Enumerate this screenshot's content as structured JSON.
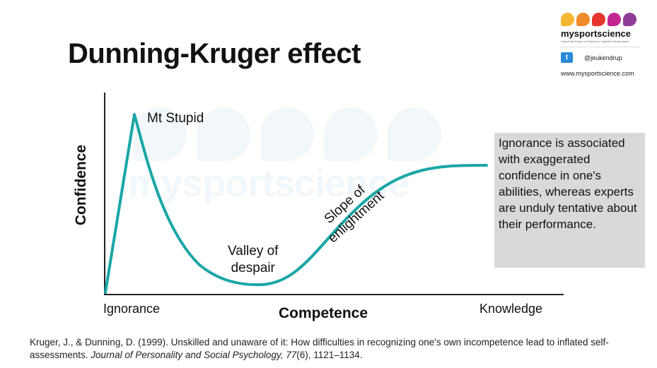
{
  "title": "Dunning-Kruger effect",
  "logo": {
    "name": "mysportscience",
    "tagline": "Unlock the Power of Science to Optimise Performance",
    "twitter_handle": "@jeukendrup",
    "url": "www.mysportscience.com",
    "dot_colors": [
      "#f5b731",
      "#f08a2b",
      "#e5352c",
      "#c2278f",
      "#8e3d97"
    ],
    "twitter_icon": "twitter-icon"
  },
  "watermark": "mysportscience",
  "axes": {
    "y_label": "Confidence",
    "x_label": "Competence",
    "x_left": "Ignorance",
    "x_right": "Knowledge"
  },
  "annotations": {
    "peak": "Mt Stupid",
    "valley_line1": "Valley of",
    "valley_line2": "despair",
    "slope_line1": "Slope of",
    "slope_line2": "enlightment"
  },
  "infobox": "Ignorance is associated with exaggerated confidence in one's abilities, whereas experts are unduly tentative about their performance.",
  "citation": {
    "authors": "Kruger, J., & Dunning, D. (1999). Unskilled and unaware of it: How difficulties in recognizing one's own incompetence lead to inflated self-assessments.",
    "journal": "Journal of Personality and Social Psychology,",
    "volume": "77",
    "issue_pages": "(6), 1121–1134."
  },
  "colors": {
    "curve": "#1aa6a6",
    "infobox_bg": "#d9d9d9",
    "axis": "#222222"
  }
}
